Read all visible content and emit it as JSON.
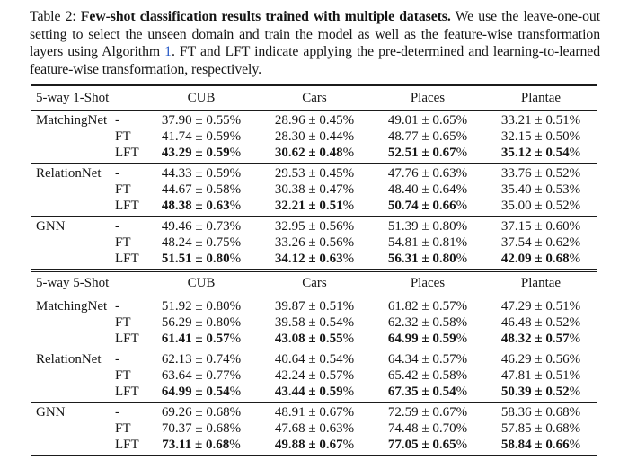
{
  "caption": {
    "prefix": "Table 2: ",
    "bold": "Few-shot classification results trained with multiple datasets.",
    "body1": " We use the leave-one-out setting to select the unseen domain and train the model as well as the feature-wise transformation layers using Algorithm ",
    "link": "1",
    "body2": ". FT and LFT indicate applying the pre-determined and learning-to-learned feature-wise transformation, respectively."
  },
  "table": {
    "unit": "%",
    "columns": [
      "CUB",
      "Cars",
      "Places",
      "Plantae"
    ],
    "text_color": "#161616",
    "link_color": "#2b5cc7",
    "sections": [
      {
        "id": "1shot",
        "label": "5-way 1-Shot",
        "groups": [
          {
            "model": "MatchingNet",
            "rows": [
              {
                "variant": "-",
                "cells": [
                  {
                    "v": "37.90 ± 0.55",
                    "bold": false
                  },
                  {
                    "v": "28.96 ± 0.45",
                    "bold": false
                  },
                  {
                    "v": "49.01 ± 0.65",
                    "bold": false
                  },
                  {
                    "v": "33.21 ± 0.51",
                    "bold": false
                  }
                ]
              },
              {
                "variant": "FT",
                "cells": [
                  {
                    "v": "41.74 ± 0.59",
                    "bold": false
                  },
                  {
                    "v": "28.30 ± 0.44",
                    "bold": false
                  },
                  {
                    "v": "48.77 ± 0.65",
                    "bold": false
                  },
                  {
                    "v": "32.15 ± 0.50",
                    "bold": false
                  }
                ]
              },
              {
                "variant": "LFT",
                "cells": [
                  {
                    "v": "43.29 ± 0.59",
                    "bold": true
                  },
                  {
                    "v": "30.62 ± 0.48",
                    "bold": true
                  },
                  {
                    "v": "52.51 ± 0.67",
                    "bold": true
                  },
                  {
                    "v": "35.12 ± 0.54",
                    "bold": true
                  }
                ]
              }
            ]
          },
          {
            "model": "RelationNet",
            "rows": [
              {
                "variant": "-",
                "cells": [
                  {
                    "v": "44.33 ± 0.59",
                    "bold": false
                  },
                  {
                    "v": "29.53 ± 0.45",
                    "bold": false
                  },
                  {
                    "v": "47.76 ± 0.63",
                    "bold": false
                  },
                  {
                    "v": "33.76 ± 0.52",
                    "bold": false
                  }
                ]
              },
              {
                "variant": "FT",
                "cells": [
                  {
                    "v": "44.67 ± 0.58",
                    "bold": false
                  },
                  {
                    "v": "30.38 ± 0.47",
                    "bold": false
                  },
                  {
                    "v": "48.40 ± 0.64",
                    "bold": false
                  },
                  {
                    "v": "35.40 ± 0.53",
                    "bold": false
                  }
                ]
              },
              {
                "variant": "LFT",
                "cells": [
                  {
                    "v": "48.38 ± 0.63",
                    "bold": true
                  },
                  {
                    "v": "32.21 ± 0.51",
                    "bold": true
                  },
                  {
                    "v": "50.74 ± 0.66",
                    "bold": true
                  },
                  {
                    "v": "35.00 ± 0.52",
                    "bold": false
                  }
                ]
              }
            ]
          },
          {
            "model": "GNN",
            "rows": [
              {
                "variant": "-",
                "cells": [
                  {
                    "v": "49.46 ± 0.73",
                    "bold": false
                  },
                  {
                    "v": "32.95 ± 0.56",
                    "bold": false
                  },
                  {
                    "v": "51.39 ± 0.80",
                    "bold": false
                  },
                  {
                    "v": "37.15 ± 0.60",
                    "bold": false
                  }
                ]
              },
              {
                "variant": "FT",
                "cells": [
                  {
                    "v": "48.24 ± 0.75",
                    "bold": false
                  },
                  {
                    "v": "33.26 ± 0.56",
                    "bold": false
                  },
                  {
                    "v": "54.81 ± 0.81",
                    "bold": false
                  },
                  {
                    "v": "37.54 ± 0.62",
                    "bold": false
                  }
                ]
              },
              {
                "variant": "LFT",
                "cells": [
                  {
                    "v": "51.51 ± 0.80",
                    "bold": true
                  },
                  {
                    "v": "34.12 ± 0.63",
                    "bold": true
                  },
                  {
                    "v": "56.31 ± 0.80",
                    "bold": true
                  },
                  {
                    "v": "42.09 ± 0.68",
                    "bold": true
                  }
                ]
              }
            ]
          }
        ]
      },
      {
        "id": "5shot",
        "label": "5-way 5-Shot",
        "groups": [
          {
            "model": "MatchingNet",
            "rows": [
              {
                "variant": "-",
                "cells": [
                  {
                    "v": "51.92 ± 0.80",
                    "bold": false
                  },
                  {
                    "v": "39.87 ± 0.51",
                    "bold": false
                  },
                  {
                    "v": "61.82 ± 0.57",
                    "bold": false
                  },
                  {
                    "v": "47.29 ± 0.51",
                    "bold": false
                  }
                ]
              },
              {
                "variant": "FT",
                "cells": [
                  {
                    "v": "56.29 ± 0.80",
                    "bold": false
                  },
                  {
                    "v": "39.58 ± 0.54",
                    "bold": false
                  },
                  {
                    "v": "62.32 ± 0.58",
                    "bold": false
                  },
                  {
                    "v": "46.48 ± 0.52",
                    "bold": false
                  }
                ]
              },
              {
                "variant": "LFT",
                "cells": [
                  {
                    "v": "61.41 ± 0.57",
                    "bold": true
                  },
                  {
                    "v": "43.08 ± 0.55",
                    "bold": true
                  },
                  {
                    "v": "64.99 ± 0.59",
                    "bold": true
                  },
                  {
                    "v": "48.32 ± 0.57",
                    "bold": true
                  }
                ]
              }
            ]
          },
          {
            "model": "RelationNet",
            "rows": [
              {
                "variant": "-",
                "cells": [
                  {
                    "v": "62.13 ± 0.74",
                    "bold": false
                  },
                  {
                    "v": "40.64 ± 0.54",
                    "bold": false
                  },
                  {
                    "v": "64.34 ± 0.57",
                    "bold": false
                  },
                  {
                    "v": "46.29 ± 0.56",
                    "bold": false
                  }
                ]
              },
              {
                "variant": "FT",
                "cells": [
                  {
                    "v": "63.64 ± 0.77",
                    "bold": false
                  },
                  {
                    "v": "42.24 ± 0.57",
                    "bold": false
                  },
                  {
                    "v": "65.42 ± 0.58",
                    "bold": false
                  },
                  {
                    "v": "47.81 ± 0.51",
                    "bold": false
                  }
                ]
              },
              {
                "variant": "LFT",
                "cells": [
                  {
                    "v": "64.99 ± 0.54",
                    "bold": true
                  },
                  {
                    "v": "43.44 ± 0.59",
                    "bold": true
                  },
                  {
                    "v": "67.35 ± 0.54",
                    "bold": true
                  },
                  {
                    "v": "50.39 ± 0.52",
                    "bold": true
                  }
                ]
              }
            ]
          },
          {
            "model": "GNN",
            "rows": [
              {
                "variant": "-",
                "cells": [
                  {
                    "v": "69.26 ± 0.68",
                    "bold": false
                  },
                  {
                    "v": "48.91 ± 0.67",
                    "bold": false
                  },
                  {
                    "v": "72.59 ± 0.67",
                    "bold": false
                  },
                  {
                    "v": "58.36 ± 0.68",
                    "bold": false
                  }
                ]
              },
              {
                "variant": "FT",
                "cells": [
                  {
                    "v": "70.37 ± 0.68",
                    "bold": false
                  },
                  {
                    "v": "47.68 ± 0.63",
                    "bold": false
                  },
                  {
                    "v": "74.48 ± 0.70",
                    "bold": false
                  },
                  {
                    "v": "57.85 ± 0.68",
                    "bold": false
                  }
                ]
              },
              {
                "variant": "LFT",
                "cells": [
                  {
                    "v": "73.11 ± 0.68",
                    "bold": true
                  },
                  {
                    "v": "49.88 ± 0.67",
                    "bold": true
                  },
                  {
                    "v": "77.05 ± 0.65",
                    "bold": true
                  },
                  {
                    "v": "58.84 ± 0.66",
                    "bold": true
                  }
                ]
              }
            ]
          }
        ]
      }
    ]
  }
}
